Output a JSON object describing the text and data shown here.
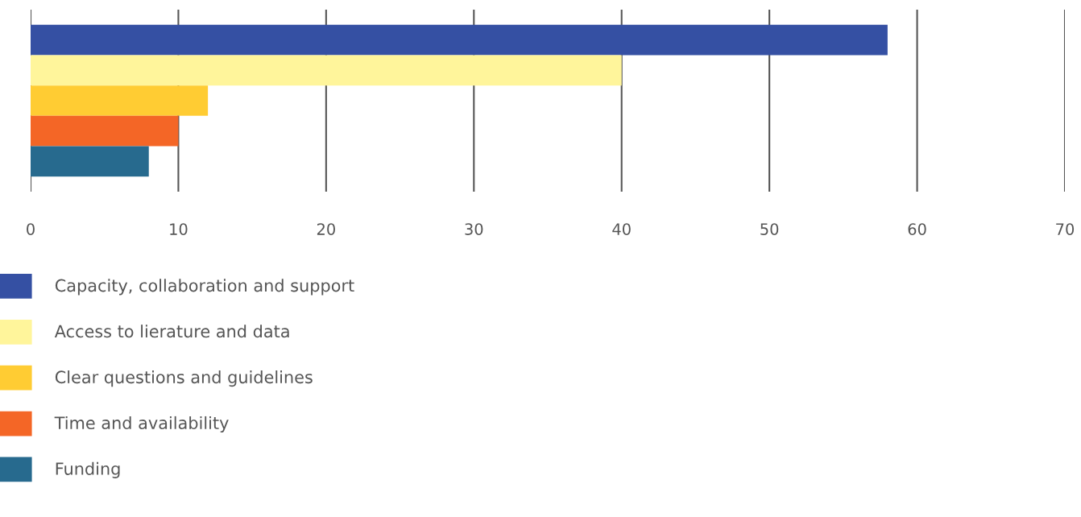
{
  "chart_data": {
    "type": "bar",
    "orientation": "horizontal",
    "categories": [
      null
    ],
    "series": [
      {
        "name": "Capacity, collaboration and support",
        "color": "#3550a3",
        "values": [
          58
        ]
      },
      {
        "name": "Access to lierature and data",
        "color": "#fff59b",
        "values": [
          40
        ]
      },
      {
        "name": "Clear questions and guidelines",
        "color": "#ffcc33",
        "values": [
          12
        ]
      },
      {
        "name": "Time and availability",
        "color": "#f46626",
        "values": [
          10
        ]
      },
      {
        "name": "Funding",
        "color": "#276a8e",
        "values": [
          8
        ]
      }
    ],
    "xlim": [
      0,
      70
    ],
    "xticks": [
      0,
      10,
      20,
      30,
      40,
      50,
      60,
      70
    ],
    "grid": "x",
    "legend": "bottom"
  }
}
